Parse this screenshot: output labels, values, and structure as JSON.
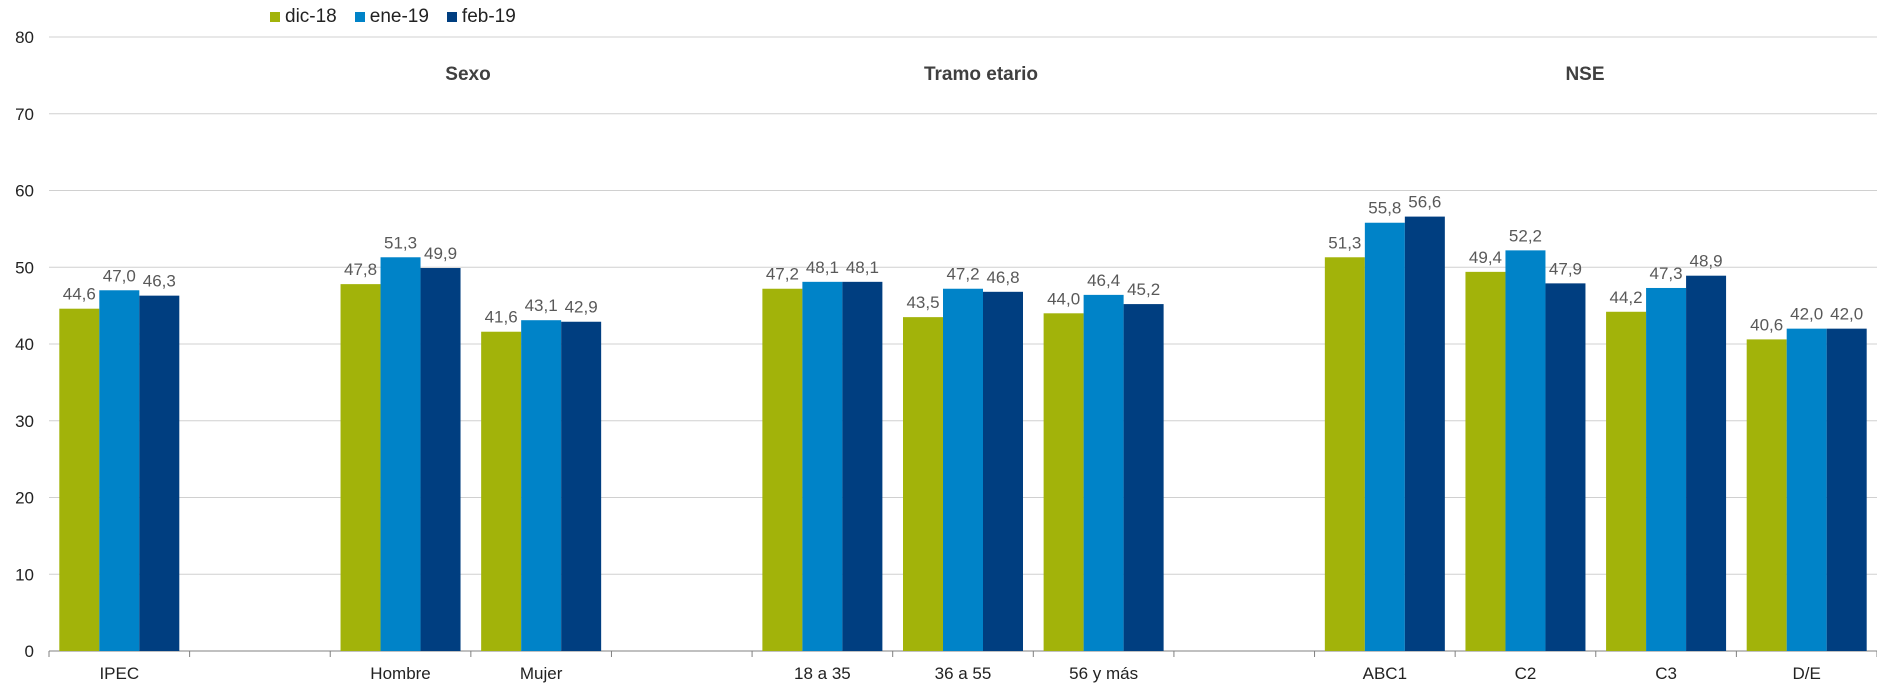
{
  "chart_data": {
    "type": "bar",
    "categories": [
      "IPEC",
      "",
      "Hombre",
      "Mujer",
      "",
      "18 a 35",
      "36 a 55",
      "56 y más",
      "",
      "ABC1",
      "C2",
      "C3",
      "D/E"
    ],
    "series": [
      {
        "name": "dic-18",
        "color": "#a2b30a",
        "values": [
          44.6,
          null,
          47.8,
          41.6,
          null,
          47.2,
          43.5,
          44.0,
          null,
          51.3,
          49.4,
          44.2,
          40.6
        ],
        "labels": [
          "44,6",
          "",
          "47,8",
          "41,6",
          "",
          "47,2",
          "43,5",
          "44,0",
          "",
          "51,3",
          "49,4",
          "44,2",
          "40,6"
        ]
      },
      {
        "name": "ene-19",
        "color": "#0083c8",
        "values": [
          47.0,
          null,
          51.3,
          43.1,
          null,
          48.1,
          47.2,
          46.4,
          null,
          55.8,
          52.2,
          47.3,
          42.0
        ],
        "labels": [
          "47,0",
          "",
          "51,3",
          "43,1",
          "",
          "48,1",
          "47,2",
          "46,4",
          "",
          "55,8",
          "52,2",
          "47,3",
          "42,0"
        ]
      },
      {
        "name": "feb-19",
        "color": "#003e80",
        "values": [
          46.3,
          null,
          49.9,
          42.9,
          null,
          48.1,
          46.8,
          45.2,
          null,
          56.6,
          47.9,
          48.9,
          42.0
        ],
        "labels": [
          "46,3",
          "",
          "49,9",
          "42,9",
          "",
          "48,1",
          "46,8",
          "45,2",
          "",
          "56,6",
          "47,9",
          "48,9",
          "42,0"
        ]
      }
    ],
    "group_titles": [
      "Sexo",
      "Tramo etario",
      "NSE"
    ],
    "ylim": [
      0,
      80
    ],
    "yticks": [
      "0",
      "10",
      "20",
      "30",
      "40",
      "50",
      "60",
      "70",
      "80"
    ],
    "grid": true,
    "legend_position": "top-left"
  }
}
